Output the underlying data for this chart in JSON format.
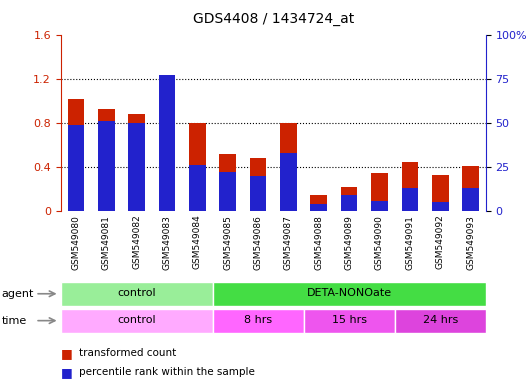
{
  "title": "GDS4408 / 1434724_at",
  "samples": [
    "GSM549080",
    "GSM549081",
    "GSM549082",
    "GSM549083",
    "GSM549084",
    "GSM549085",
    "GSM549086",
    "GSM549087",
    "GSM549088",
    "GSM549089",
    "GSM549090",
    "GSM549091",
    "GSM549092",
    "GSM549093"
  ],
  "red_values": [
    1.02,
    0.93,
    0.88,
    1.21,
    0.8,
    0.52,
    0.48,
    0.8,
    0.15,
    0.22,
    0.35,
    0.45,
    0.33,
    0.41
  ],
  "blue_values": [
    49,
    51,
    50,
    77,
    26,
    22,
    20,
    33,
    4,
    9,
    6,
    13,
    5,
    13
  ],
  "ylim_left": [
    0,
    1.6
  ],
  "ylim_right": [
    0,
    100
  ],
  "yticks_left": [
    0,
    0.4,
    0.8,
    1.2,
    1.6
  ],
  "yticks_right": [
    0,
    25,
    50,
    75,
    100
  ],
  "ytick_labels_left": [
    "0",
    "0.4",
    "0.8",
    "1.2",
    "1.6"
  ],
  "ytick_labels_right": [
    "0",
    "25",
    "50",
    "75",
    "100%"
  ],
  "agent_labels": [
    {
      "text": "control",
      "start": 0,
      "end": 4,
      "color": "#99EE99"
    },
    {
      "text": "DETA-NONOate",
      "start": 5,
      "end": 13,
      "color": "#44DD44"
    }
  ],
  "time_labels": [
    {
      "text": "control",
      "start": 0,
      "end": 4,
      "color": "#FFAAFF"
    },
    {
      "text": "8 hrs",
      "start": 5,
      "end": 7,
      "color": "#FF66FF"
    },
    {
      "text": "15 hrs",
      "start": 8,
      "end": 10,
      "color": "#EE55EE"
    },
    {
      "text": "24 hrs",
      "start": 11,
      "end": 13,
      "color": "#DD44DD"
    }
  ],
  "bar_width": 0.55,
  "red_color": "#CC2200",
  "blue_color": "#2222CC",
  "tick_label_color_left": "#CC2200",
  "tick_label_color_right": "#2222CC",
  "xticklabel_bg": "#CCCCCC",
  "legend_red": "transformed count",
  "legend_blue": "percentile rank within the sample"
}
